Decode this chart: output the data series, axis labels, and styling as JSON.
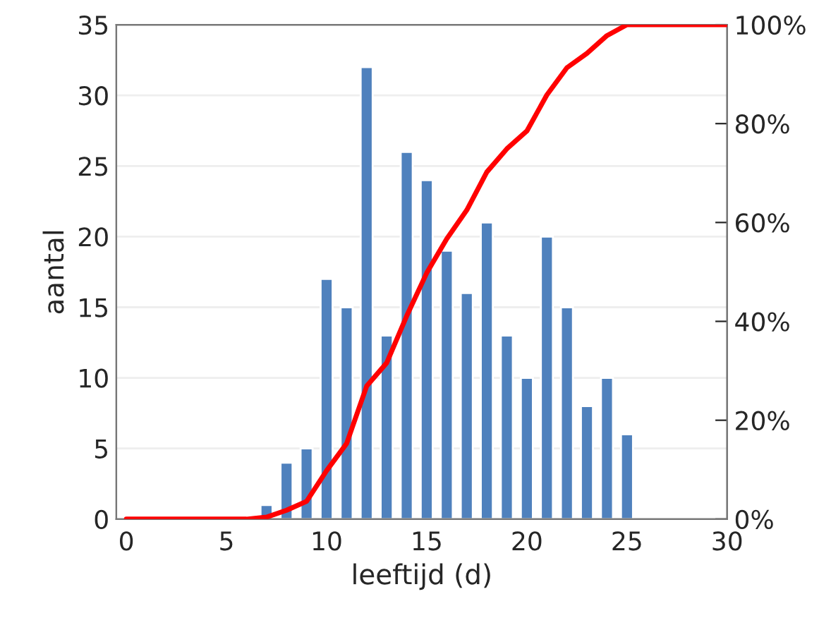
{
  "chart_data": {
    "type": "bar",
    "xlabel": "leeftijd (d)",
    "ylabel": "aantal",
    "xlim": [
      -0.5,
      30
    ],
    "xticks": [
      0,
      5,
      10,
      15,
      20,
      25,
      30
    ],
    "ylim": [
      0,
      35
    ],
    "yticks": [
      0,
      5,
      10,
      15,
      20,
      25,
      30,
      35
    ],
    "y2lim": [
      0,
      100
    ],
    "y2ticks": [
      {
        "value": 0,
        "label": "0%"
      },
      {
        "value": 20,
        "label": "20%"
      },
      {
        "value": 40,
        "label": "40%"
      },
      {
        "value": 60,
        "label": "60%"
      },
      {
        "value": 80,
        "label": "80%"
      },
      {
        "value": 100,
        "label": "100%"
      }
    ],
    "grid": "y",
    "legend": false,
    "series": [
      {
        "color": "#4f81bd",
        "x": [
          7,
          8,
          9,
          10,
          11,
          12,
          13,
          14,
          15,
          16,
          17,
          18,
          19,
          20,
          21,
          22,
          23,
          24,
          25
        ],
        "values": [
          1,
          4,
          5,
          17,
          15,
          32,
          13,
          26,
          24,
          19,
          16,
          21,
          13,
          10,
          20,
          15,
          8,
          10,
          6
        ]
      },
      {
        "type": "line",
        "axis": "y2",
        "color": "#ff0000",
        "x": [
          0,
          1,
          2,
          3,
          4,
          5,
          6,
          7,
          8,
          9,
          10,
          11,
          12,
          13,
          14,
          15,
          16,
          17,
          18,
          19,
          20,
          21,
          22,
          23,
          24,
          25,
          26,
          27,
          28,
          29,
          30
        ],
        "values": [
          0,
          0,
          0,
          0,
          0,
          0,
          0,
          0.4,
          1.8,
          3.6,
          9.8,
          15.3,
          26.9,
          31.6,
          41.1,
          49.8,
          56.7,
          62.5,
          70.2,
          74.9,
          78.5,
          85.8,
          91.3,
          94.2,
          97.8,
          100,
          100,
          100,
          100,
          100,
          100
        ]
      }
    ]
  }
}
